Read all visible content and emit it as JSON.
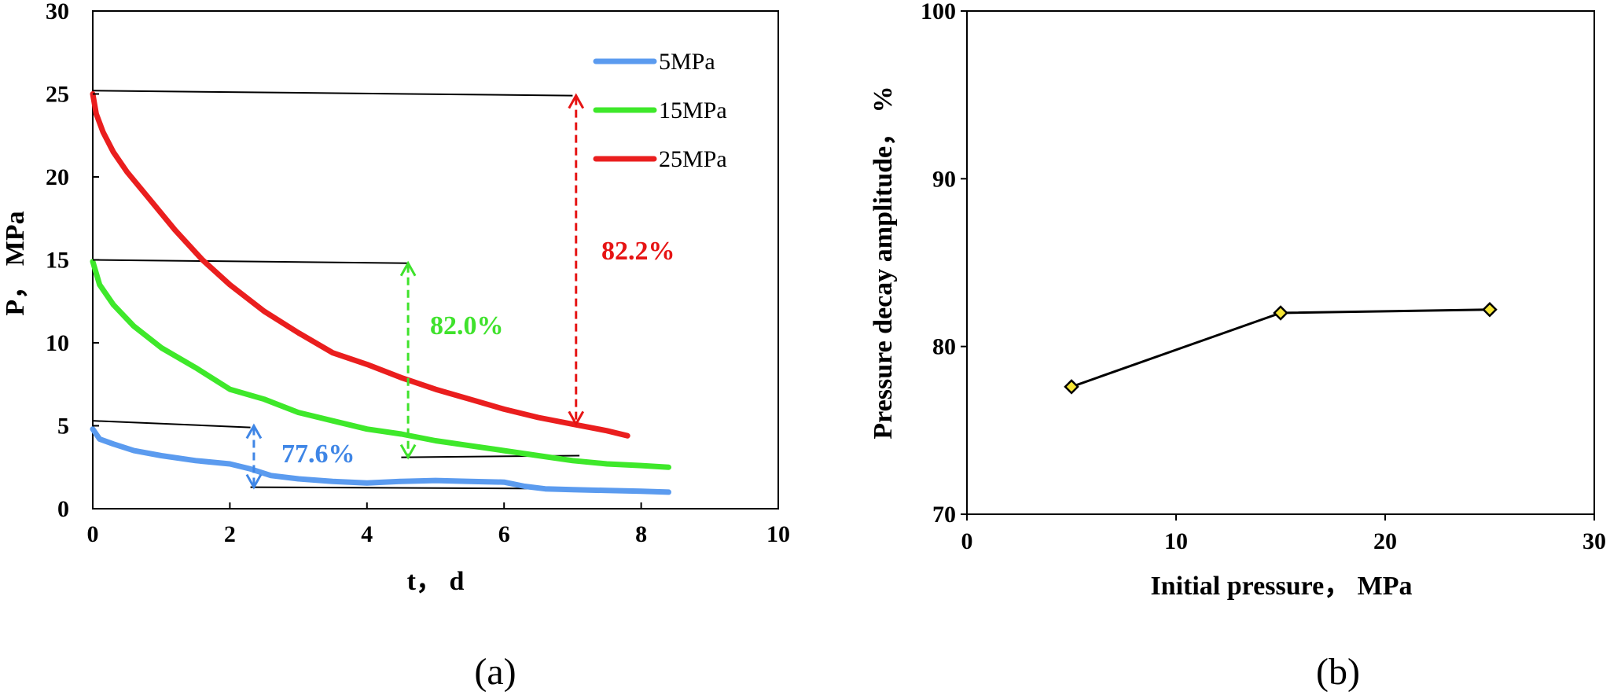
{
  "chart_data": [
    {
      "panel_label": "(a)",
      "type": "line",
      "xlabel": "t， d",
      "ylabel": "P， MPa",
      "xlim": [
        0,
        10
      ],
      "ylim": [
        0,
        30
      ],
      "xticks": [
        "0",
        "2",
        "4",
        "6",
        "8",
        "10"
      ],
      "yticks": [
        "0",
        "5",
        "10",
        "15",
        "20",
        "25",
        "30"
      ],
      "grid": false,
      "legend_position": "top-right",
      "series": [
        {
          "name": "5MPa",
          "color": "#5b9bef",
          "x": [
            0,
            0.1,
            0.3,
            0.6,
            1.0,
            1.5,
            2.0,
            2.3,
            2.6,
            3.0,
            3.5,
            4.0,
            4.5,
            5.0,
            5.5,
            6.0,
            6.3,
            6.6,
            7.0,
            7.5,
            8.0,
            8.4
          ],
          "y": [
            4.8,
            4.2,
            3.9,
            3.5,
            3.2,
            2.9,
            2.7,
            2.4,
            2.0,
            1.8,
            1.65,
            1.55,
            1.65,
            1.7,
            1.65,
            1.6,
            1.35,
            1.2,
            1.15,
            1.1,
            1.05,
            1.0
          ]
        },
        {
          "name": "15MPa",
          "color": "#3ee82a",
          "x": [
            0,
            0.1,
            0.3,
            0.6,
            1.0,
            1.5,
            2.0,
            2.5,
            3.0,
            3.5,
            4.0,
            4.5,
            5.0,
            5.5,
            6.0,
            6.5,
            7.0,
            7.5,
            8.0,
            8.4
          ],
          "y": [
            14.9,
            13.5,
            12.3,
            11.0,
            9.7,
            8.5,
            7.2,
            6.6,
            5.8,
            5.3,
            4.8,
            4.5,
            4.1,
            3.8,
            3.5,
            3.2,
            2.9,
            2.7,
            2.6,
            2.5
          ]
        },
        {
          "name": "25MPa",
          "color": "#ea1e1e",
          "x": [
            0,
            0.05,
            0.15,
            0.3,
            0.5,
            0.8,
            1.2,
            1.6,
            2.0,
            2.5,
            3.0,
            3.5,
            4.0,
            4.5,
            5.0,
            5.5,
            6.0,
            6.5,
            7.0,
            7.5,
            7.8
          ],
          "y": [
            25.0,
            23.8,
            22.7,
            21.5,
            20.3,
            18.8,
            16.8,
            15.0,
            13.5,
            11.9,
            10.6,
            9.4,
            8.7,
            7.9,
            7.2,
            6.6,
            6.0,
            5.5,
            5.1,
            4.7,
            4.4
          ]
        }
      ],
      "reference_lines": [
        {
          "x": [
            0,
            2.3
          ],
          "y": [
            5.3,
            4.9
          ]
        },
        {
          "x": [
            2.3,
            7.2
          ],
          "y": [
            1.3,
            1.2
          ]
        },
        {
          "x": [
            0,
            4.6
          ],
          "y": [
            15.0,
            14.8
          ]
        },
        {
          "x": [
            4.5,
            7.1
          ],
          "y": [
            3.1,
            3.2
          ]
        },
        {
          "x": [
            0,
            7.0
          ],
          "y": [
            25.2,
            24.9
          ]
        }
      ],
      "annotations": [
        {
          "text": "77.6%",
          "color": "#3f86e6",
          "arrow": {
            "x": 2.35,
            "y_top": 5.0,
            "y_bottom": 1.3
          }
        },
        {
          "text": "82.0%",
          "color": "#3fe22c",
          "arrow": {
            "x": 4.6,
            "y_top": 14.8,
            "y_bottom": 3.1
          }
        },
        {
          "text": "82.2%",
          "color": "#e61414",
          "arrow": {
            "x": 7.05,
            "y_top": 24.9,
            "y_bottom": 5.1
          }
        }
      ]
    },
    {
      "panel_label": "(b)",
      "type": "line",
      "xlabel": "Initial pressure， MPa",
      "ylabel": "Pressure decay amplitude， %",
      "xlim": [
        0,
        30
      ],
      "ylim": [
        70,
        100
      ],
      "xticks": [
        "0",
        "10",
        "20",
        "30"
      ],
      "yticks": [
        "70",
        "80",
        "90",
        "100"
      ],
      "grid": false,
      "marker": "diamond",
      "marker_color": "#f5e535",
      "series": [
        {
          "x": [
            5,
            15,
            25
          ],
          "y": [
            77.6,
            82.0,
            82.2
          ]
        }
      ]
    }
  ]
}
